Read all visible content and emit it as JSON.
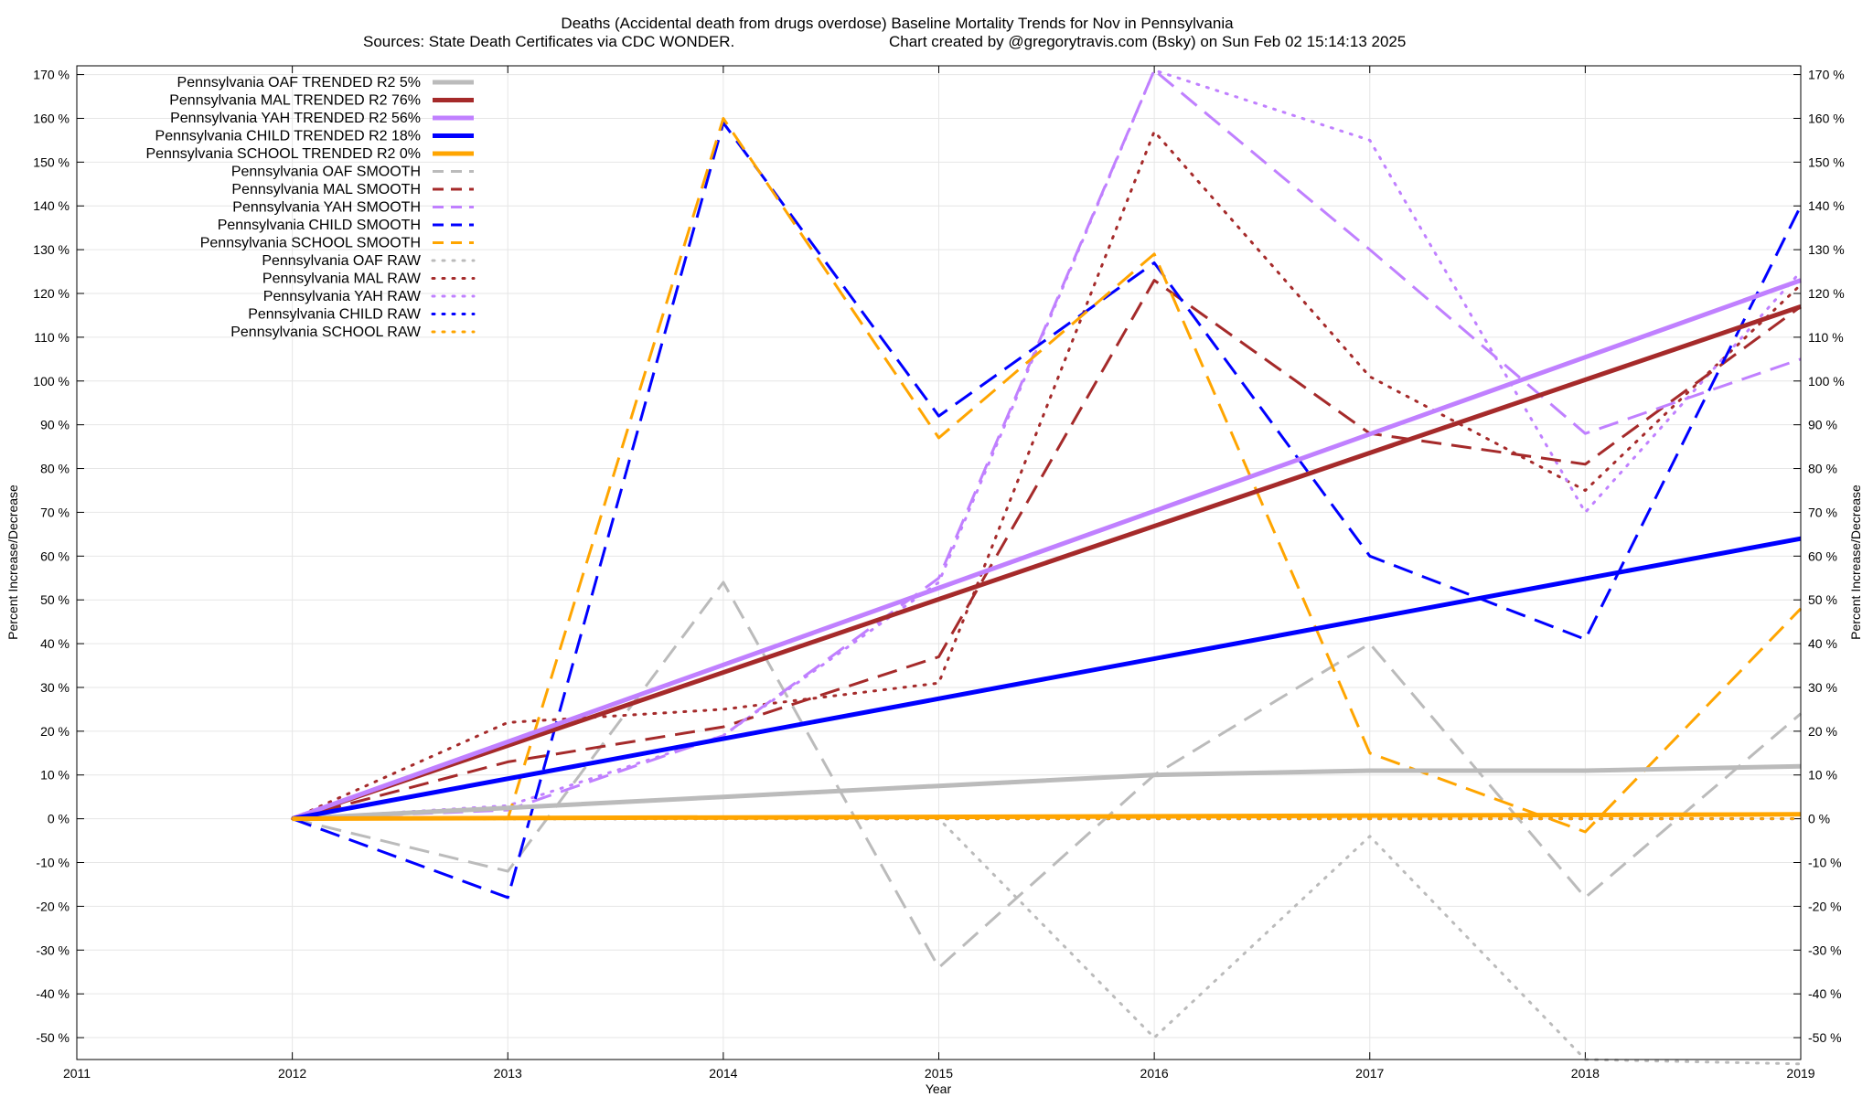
{
  "chart_data": {
    "type": "line",
    "title": "Deaths (Accidental death from drugs overdose)  Baseline Mortality Trends for Nov in Pennsylvania",
    "subtitle_left": "Sources: State Death Certificates via CDC WONDER.",
    "subtitle_right": "Chart created by @gregorytravis.com (Bsky) on Sun Feb 02 15:14:13 2025",
    "xlabel": "Year",
    "ylabel": "Percent Increase/Decrease",
    "ylabel_right": "Percent Increase/Decrease",
    "xlim": [
      2011,
      2019
    ],
    "ylim": [
      -55,
      172
    ],
    "x_ticks": [
      "2011",
      "2012",
      "2013",
      "2014",
      "2015",
      "2016",
      "2017",
      "2018",
      "2019"
    ],
    "y_ticks": [
      "170 %",
      "160 %",
      "150 %",
      "140 %",
      "130 %",
      "120 %",
      "110 %",
      "100 %",
      "90 %",
      "80 %",
      "70 %",
      "60 %",
      "50 %",
      "40 %",
      "30 %",
      "20 %",
      "10 %",
      "0 %",
      "-10 %",
      "-20 %",
      "-30 %",
      "-40 %",
      "-50 %"
    ],
    "y_tick_values": [
      170,
      160,
      150,
      140,
      130,
      120,
      110,
      100,
      90,
      80,
      70,
      60,
      50,
      40,
      30,
      20,
      10,
      0,
      -10,
      -20,
      -30,
      -40,
      -50
    ],
    "legend_position": "top-left",
    "series": [
      {
        "name": "Pennsylvania OAF TRENDED R2  5%",
        "style": "solid",
        "color": "#bbbbbb",
        "x": [
          2012,
          2013,
          2014,
          2015,
          2016,
          2017,
          2018,
          2019
        ],
        "y": [
          0,
          2.5,
          5,
          7.5,
          10,
          11,
          11,
          12
        ]
      },
      {
        "name": "Pennsylvania MAL TRENDED R2  76%",
        "style": "solid",
        "color": "#a52a2a",
        "x": [
          2012,
          2019
        ],
        "y": [
          0,
          117
        ]
      },
      {
        "name": "Pennsylvania YAH TRENDED R2  56%",
        "style": "solid",
        "color": "#c080ff",
        "x": [
          2012,
          2019
        ],
        "y": [
          0,
          123
        ]
      },
      {
        "name": "Pennsylvania CHILD TRENDED R2  18%",
        "style": "solid",
        "color": "#0000ff",
        "x": [
          2012,
          2019
        ],
        "y": [
          0,
          64
        ]
      },
      {
        "name": "Pennsylvania SCHOOL TRENDED R2  0%",
        "style": "solid",
        "color": "#ffa500",
        "x": [
          2012,
          2019
        ],
        "y": [
          0,
          1
        ]
      },
      {
        "name": "Pennsylvania OAF SMOOTH",
        "style": "dashed",
        "color": "#bbbbbb",
        "x": [
          2012,
          2013,
          2014,
          2015,
          2016,
          2017,
          2018,
          2019
        ],
        "y": [
          0,
          -12,
          54,
          -34,
          10,
          40,
          -18,
          24
        ]
      },
      {
        "name": "Pennsylvania MAL SMOOTH",
        "style": "dashed",
        "color": "#a52a2a",
        "x": [
          2012,
          2013,
          2014,
          2015,
          2016,
          2017,
          2018,
          2019
        ],
        "y": [
          0,
          13,
          21,
          37,
          123,
          88,
          81,
          117
        ]
      },
      {
        "name": "Pennsylvania YAH SMOOTH",
        "style": "dashed",
        "color": "#c080ff",
        "x": [
          2012,
          2013,
          2014,
          2015,
          2016,
          2017,
          2018,
          2019
        ],
        "y": [
          0,
          2,
          19,
          55,
          171,
          130,
          88,
          105
        ]
      },
      {
        "name": "Pennsylvania CHILD SMOOTH",
        "style": "dashed",
        "color": "#0000ff",
        "x": [
          2012,
          2013,
          2014,
          2015,
          2016,
          2017,
          2018,
          2019
        ],
        "y": [
          0,
          -18,
          159,
          92,
          127,
          60,
          41,
          140
        ]
      },
      {
        "name": "Pennsylvania SCHOOL SMOOTH",
        "style": "dashed",
        "color": "#ffa500",
        "x": [
          2012,
          2013,
          2014,
          2015,
          2016,
          2017,
          2018,
          2019
        ],
        "y": [
          0,
          0,
          160,
          87,
          129,
          15,
          -3,
          48
        ]
      },
      {
        "name": "Pennsylvania OAF RAW",
        "style": "dotted",
        "color": "#bbbbbb",
        "x": [
          2012,
          2013,
          2014,
          2015,
          2016,
          2017,
          2018,
          2019
        ],
        "y": [
          0,
          0,
          0,
          0,
          -50,
          -4,
          -55,
          -56
        ]
      },
      {
        "name": "Pennsylvania MAL RAW",
        "style": "dotted",
        "color": "#a52a2a",
        "x": [
          2012,
          2013,
          2014,
          2015,
          2016,
          2017,
          2018,
          2019
        ],
        "y": [
          0,
          22,
          25,
          31,
          157,
          101,
          75,
          122
        ]
      },
      {
        "name": "Pennsylvania YAH RAW",
        "style": "dotted",
        "color": "#c080ff",
        "x": [
          2012,
          2013,
          2014,
          2015,
          2016,
          2017,
          2018,
          2019
        ],
        "y": [
          0,
          3,
          19,
          54,
          171,
          155,
          70,
          125
        ]
      },
      {
        "name": "Pennsylvania CHILD RAW",
        "style": "dotted",
        "color": "#0000ff",
        "x": [
          2012,
          2013,
          2014,
          2015,
          2016,
          2017,
          2018,
          2019
        ],
        "y": [
          0,
          0,
          0,
          0,
          0,
          0,
          0,
          0
        ]
      },
      {
        "name": "Pennsylvania SCHOOL RAW",
        "style": "dotted",
        "color": "#ffa500",
        "x": [
          2012,
          2013,
          2014,
          2015,
          2016,
          2017,
          2018,
          2019
        ],
        "y": [
          0,
          0,
          0,
          0,
          0,
          0,
          0,
          0
        ]
      }
    ]
  }
}
